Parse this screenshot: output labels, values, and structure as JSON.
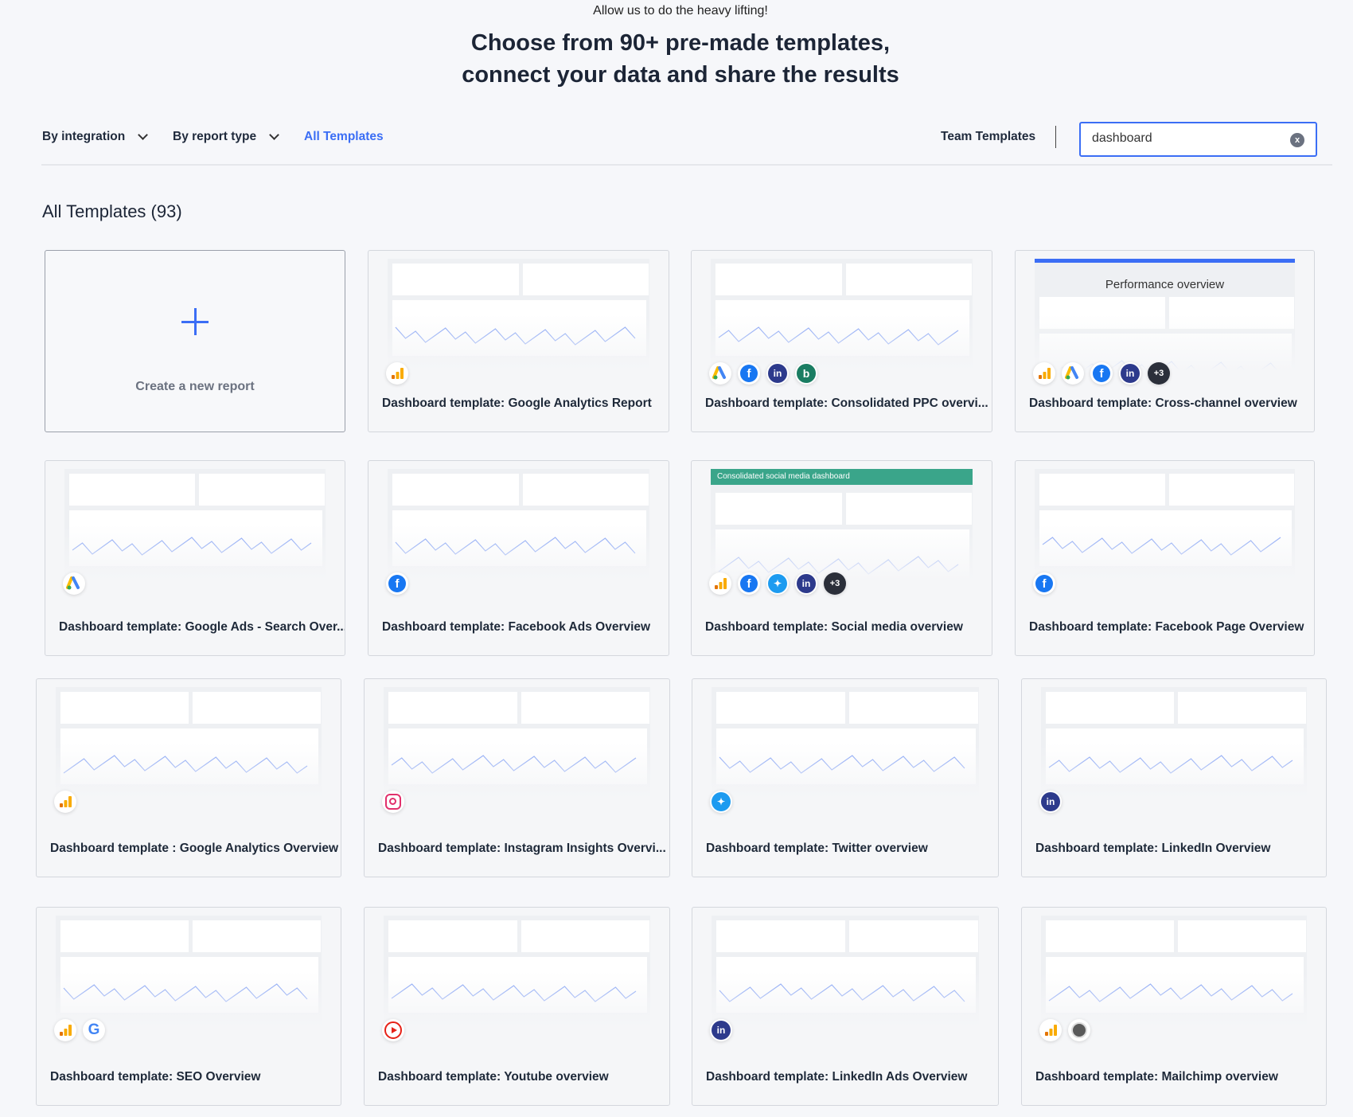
{
  "intro": "Allow us to do the heavy lifting!",
  "headline": [
    "Choose from 90+ pre-made templates,",
    "connect your data and share the results"
  ],
  "filters": {
    "by_integration": "By integration",
    "by_report_type": "By report type",
    "all_templates": "All Templates",
    "team_templates": "Team Templates"
  },
  "search": {
    "value": "dashboard",
    "clear_icon": "x"
  },
  "accent": "#3b6ef5",
  "heading": "All Templates (93)",
  "create_label": "Create a new report",
  "cards": [
    {
      "title": "Dashboard template: Google Analytics Report",
      "icons": [
        "google-analytics"
      ]
    },
    {
      "title": "Dashboard template: Consolidated PPC overvi...",
      "icons": [
        "google-ads",
        "facebook",
        "linkedin",
        "bing"
      ]
    },
    {
      "title": "Dashboard template: Cross-channel overview",
      "icons": [
        "google-analytics",
        "google-ads",
        "facebook",
        "linkedin",
        "more"
      ],
      "more": "+3",
      "preview_title": "Performance overview"
    },
    {
      "title": "Dashboard template: Google Ads - Search Over...",
      "icons": [
        "google-ads"
      ]
    },
    {
      "title": "Dashboard template: Facebook Ads Overview",
      "icons": [
        "facebook"
      ]
    },
    {
      "title": "Dashboard template: Social media overview",
      "icons": [
        "google-analytics",
        "facebook",
        "twitter",
        "linkedin",
        "more"
      ],
      "more": "+3",
      "preview_banner": "Consolidated social media dashboard"
    },
    {
      "title": "Dashboard template: Facebook Page Overview",
      "icons": [
        "facebook"
      ]
    },
    {
      "title": "Dashboard template : Google Analytics Overview",
      "icons": [
        "google-analytics"
      ]
    },
    {
      "title": "Dashboard template: Instagram Insights Overvi...",
      "icons": [
        "instagram"
      ]
    },
    {
      "title": "Dashboard template: Twitter overview",
      "icons": [
        "twitter"
      ]
    },
    {
      "title": "Dashboard template: LinkedIn Overview",
      "icons": [
        "linkedin"
      ]
    },
    {
      "title": "Dashboard template: SEO Overview",
      "icons": [
        "google-analytics",
        "google"
      ]
    },
    {
      "title": "Dashboard template: Youtube overview",
      "icons": [
        "youtube"
      ]
    },
    {
      "title": "Dashboard template: LinkedIn Ads Overview",
      "icons": [
        "linkedin"
      ]
    },
    {
      "title": "Dashboard template: Mailchimp overview",
      "icons": [
        "google-analytics",
        "mailchimp"
      ]
    }
  ]
}
